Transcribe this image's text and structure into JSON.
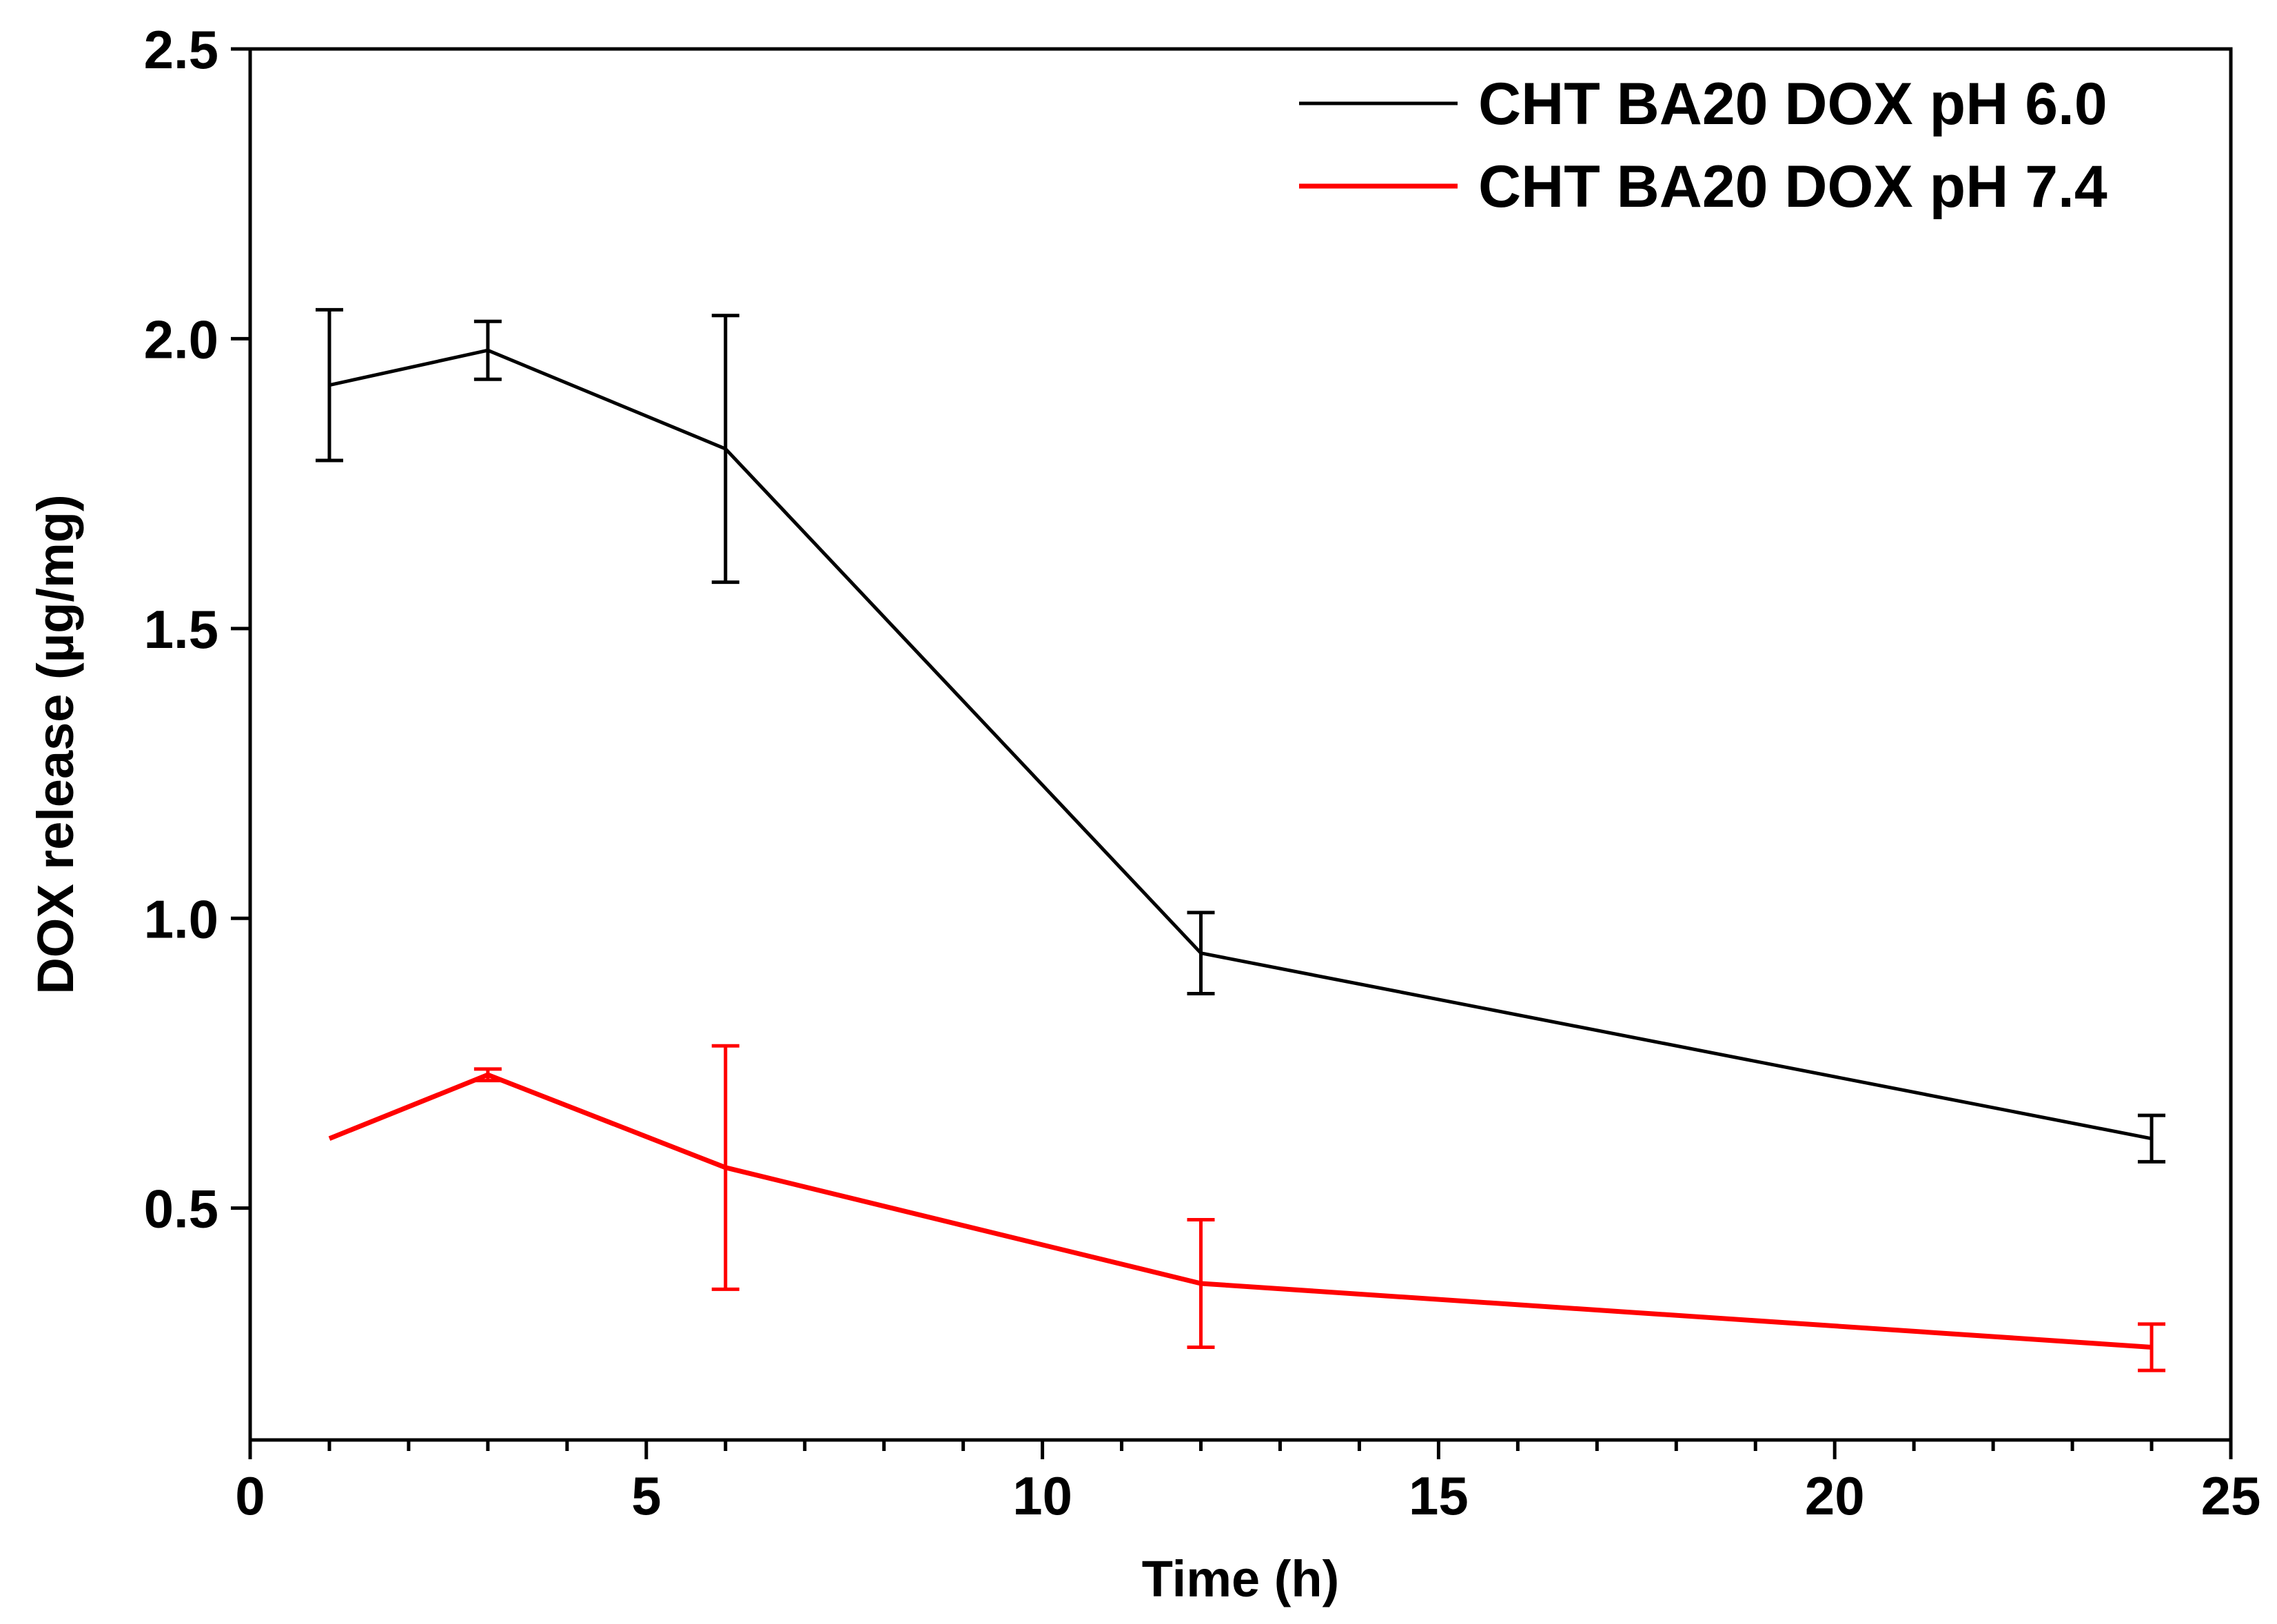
{
  "chart_data": {
    "type": "line",
    "title": "",
    "xlabel": "Time (h)",
    "ylabel": "DOX release (µg/mg)",
    "xlim": [
      0,
      25
    ],
    "ylim": [
      0.1,
      2.5
    ],
    "x_ticks": [
      0,
      5,
      10,
      15,
      20,
      25
    ],
    "x_tick_labels": [
      "0",
      "5",
      "10",
      "15",
      "20",
      "25"
    ],
    "x_minor_step": 1,
    "y_ticks": [
      0.5,
      1.0,
      1.5,
      2.0,
      2.5
    ],
    "y_tick_labels": [
      "0.5",
      "1.0",
      "1.5",
      "2.0",
      "2.5"
    ],
    "y_minor_step": 0.1,
    "grid": false,
    "legend_position": "top-right",
    "series": [
      {
        "name": "CHT BA20 DOX pH 6.0",
        "color": "#000000",
        "x": [
          1,
          3,
          6,
          12,
          24
        ],
        "y": [
          1.92,
          1.98,
          1.81,
          0.94,
          0.62
        ],
        "error": [
          0.13,
          0.05,
          0.23,
          0.07,
          0.04
        ]
      },
      {
        "name": "CHT BA20 DOX pH 7.4",
        "color": "#ff0000",
        "x": [
          1,
          3,
          6,
          12,
          24
        ],
        "y": [
          0.62,
          0.73,
          0.57,
          0.37,
          0.26
        ],
        "error": [
          0.0,
          0.01,
          0.21,
          0.11,
          0.04
        ]
      }
    ]
  }
}
